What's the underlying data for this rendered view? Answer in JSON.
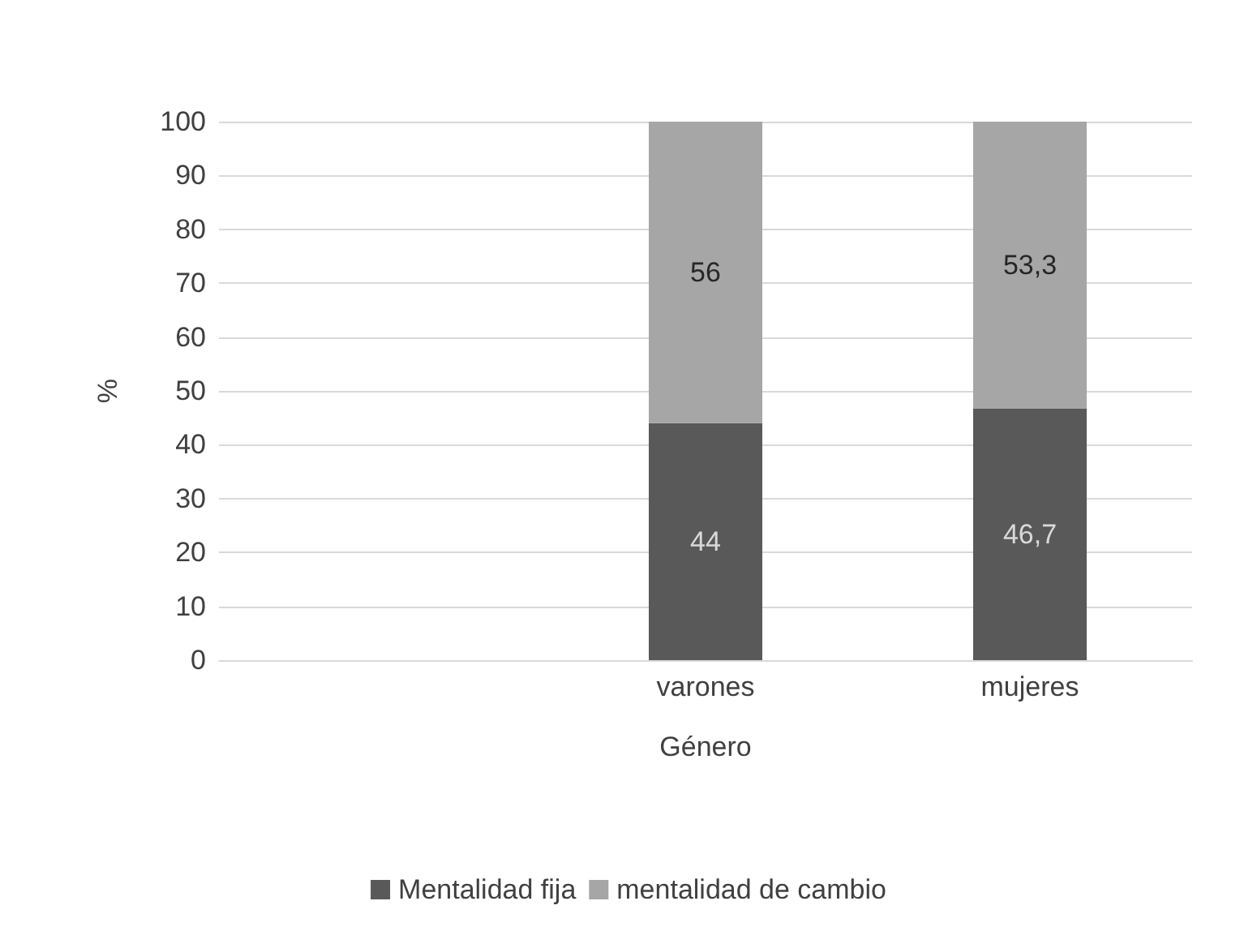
{
  "chart_data": {
    "type": "bar",
    "xlabel": "Género",
    "ylabel": "%",
    "categories": [
      null,
      "varones",
      "mujeres"
    ],
    "series": [
      {
        "name": "Mentalidad fija",
        "color": "#595959",
        "values": [
          null,
          44,
          46.7
        ],
        "value_labels": [
          null,
          "44",
          "46,7"
        ]
      },
      {
        "name": "mentalidad de cambio",
        "color": "#a6a6a6",
        "values": [
          null,
          56,
          53.3
        ],
        "value_labels": [
          null,
          "56",
          "53,3"
        ]
      }
    ],
    "stacked": true,
    "ylim": [
      0,
      100
    ],
    "yticks": [
      0,
      10,
      20,
      30,
      40,
      50,
      60,
      70,
      80,
      90,
      100
    ],
    "grid": "y",
    "legend": "bottom"
  }
}
